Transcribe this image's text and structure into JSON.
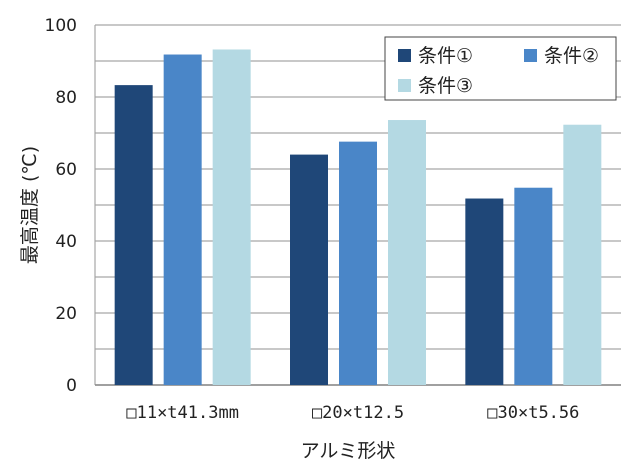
{
  "chart_data": {
    "type": "bar",
    "categories": [
      "□11×t41.3mm",
      "□20×t12.5",
      "□30×t5.56"
    ],
    "series": [
      {
        "name": "条件①",
        "values": [
          83.3,
          64.0,
          51.8
        ],
        "color": "#1f4778"
      },
      {
        "name": "条件②",
        "values": [
          91.8,
          67.6,
          54.8
        ],
        "color": "#4a86c8"
      },
      {
        "name": "条件③",
        "values": [
          93.2,
          73.6,
          72.3
        ],
        "color": "#b4d9e3"
      }
    ],
    "title": "",
    "xlabel": "アルミ形状",
    "ylabel": "最高温度 (℃)",
    "ylim": [
      0,
      100
    ],
    "yticks": [
      0,
      20,
      40,
      60,
      80,
      100
    ],
    "grid": true,
    "legend_position": "top-right"
  }
}
